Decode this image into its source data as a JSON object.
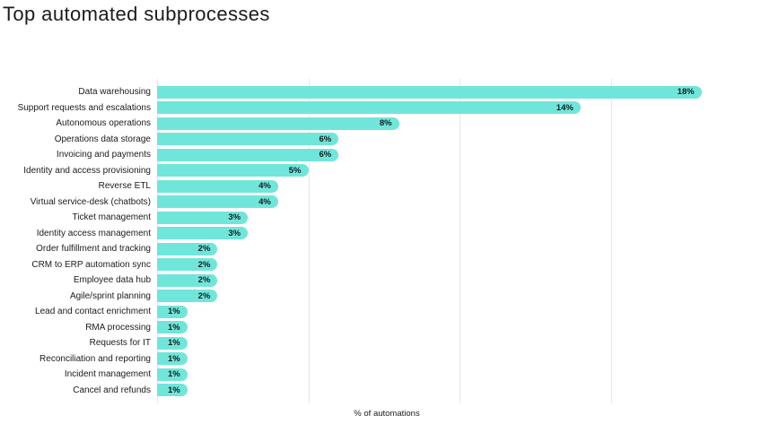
{
  "chart_data": {
    "type": "bar",
    "orientation": "horizontal",
    "title": "Top automated subprocesses",
    "xlabel": "% of automations",
    "ylabel": "",
    "xlim": [
      0,
      20
    ],
    "gridlines_every": 5,
    "grid": true,
    "legend": false,
    "bar_color": "#70E6DA",
    "value_label_color": "#101c1e",
    "gridline_color": "#e7e7e7",
    "categories": [
      "Data warehousing",
      "Support requests and escalations",
      "Autonomous operations",
      "Operations data storage",
      "Invoicing and payments",
      "Identity and access provisioning",
      "Reverse ETL",
      "Virtual service-desk (chatbots)",
      "Ticket management",
      "Identity access management",
      "Order fulfillment and tracking",
      "CRM to ERP automation sync",
      "Employee data hub",
      "Agile/sprint planning",
      "Lead and contact enrichment",
      "RMA processing",
      "Requests for IT",
      "Reconciliation and reporting",
      "Incident management",
      "Cancel and refunds"
    ],
    "values": [
      18,
      14,
      8,
      6,
      6,
      5,
      4,
      4,
      3,
      3,
      2,
      2,
      2,
      2,
      1,
      1,
      1,
      1,
      1,
      1
    ],
    "value_labels": [
      "18%",
      "14%",
      "8%",
      "6%",
      "6%",
      "5%",
      "4%",
      "4%",
      "3%",
      "3%",
      "2%",
      "2%",
      "2%",
      "2%",
      "1%",
      "1%",
      "1%",
      "1%",
      "1%",
      "1%"
    ]
  }
}
